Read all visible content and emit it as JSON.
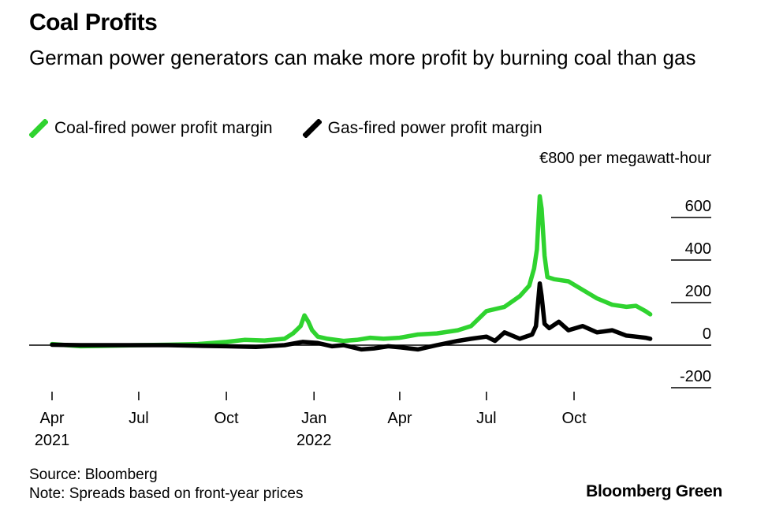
{
  "header": {
    "title": "Coal Profits",
    "subtitle": "German power generators can make more profit by burning coal than gas"
  },
  "legend": [
    {
      "label": "Coal-fired power profit margin",
      "color": "#2fd32f"
    },
    {
      "label": "Gas-fired power profit margin",
      "color": "#000000"
    }
  ],
  "footer": {
    "source": "Source: Bloomberg",
    "note": "Note: Spreads based on front-year prices",
    "brand": "Bloomberg Green"
  },
  "chart_data": {
    "type": "line",
    "x_type": "date",
    "ylim": [
      -200,
      800
    ],
    "xlim": [
      "2021-04-01",
      "2022-12-31"
    ],
    "y_unit_label": "€800 per megawatt-hour",
    "y_ticks": [
      {
        "value": 600,
        "label": "600"
      },
      {
        "value": 400,
        "label": "400"
      },
      {
        "value": 200,
        "label": "200"
      },
      {
        "value": 0,
        "label": "0"
      },
      {
        "value": -200,
        "label": "-200"
      }
    ],
    "x_ticks": [
      {
        "date": "2021-04-01",
        "label": "Apr",
        "year": "2021"
      },
      {
        "date": "2021-07-01",
        "label": "Jul",
        "year": ""
      },
      {
        "date": "2021-10-01",
        "label": "Oct",
        "year": ""
      },
      {
        "date": "2022-01-01",
        "label": "Jan",
        "year": "2022"
      },
      {
        "date": "2022-04-01",
        "label": "Apr",
        "year": ""
      },
      {
        "date": "2022-07-01",
        "label": "Jul",
        "year": ""
      },
      {
        "date": "2022-10-01",
        "label": "Oct",
        "year": ""
      }
    ],
    "grid": false,
    "legend_position": "top-left",
    "series": [
      {
        "name": "Coal-fired power profit margin",
        "color": "#2fd32f",
        "points": [
          [
            "2021-04-01",
            5
          ],
          [
            "2021-05-01",
            -5
          ],
          [
            "2021-06-01",
            -3
          ],
          [
            "2021-07-01",
            0
          ],
          [
            "2021-08-01",
            2
          ],
          [
            "2021-09-01",
            5
          ],
          [
            "2021-10-01",
            15
          ],
          [
            "2021-10-20",
            25
          ],
          [
            "2021-11-10",
            22
          ],
          [
            "2021-12-01",
            30
          ],
          [
            "2021-12-10",
            55
          ],
          [
            "2021-12-18",
            90
          ],
          [
            "2021-12-22",
            140
          ],
          [
            "2021-12-26",
            110
          ],
          [
            "2021-12-30",
            70
          ],
          [
            "2022-01-05",
            40
          ],
          [
            "2022-01-15",
            30
          ],
          [
            "2022-02-01",
            20
          ],
          [
            "2022-02-15",
            25
          ],
          [
            "2022-03-01",
            35
          ],
          [
            "2022-03-15",
            30
          ],
          [
            "2022-04-01",
            35
          ],
          [
            "2022-04-20",
            50
          ],
          [
            "2022-05-10",
            55
          ],
          [
            "2022-06-01",
            70
          ],
          [
            "2022-06-15",
            90
          ],
          [
            "2022-07-01",
            160
          ],
          [
            "2022-07-20",
            180
          ],
          [
            "2022-08-05",
            230
          ],
          [
            "2022-08-15",
            280
          ],
          [
            "2022-08-20",
            360
          ],
          [
            "2022-08-23",
            450
          ],
          [
            "2022-08-26",
            700
          ],
          [
            "2022-08-28",
            640
          ],
          [
            "2022-08-31",
            420
          ],
          [
            "2022-09-03",
            320
          ],
          [
            "2022-09-10",
            310
          ],
          [
            "2022-09-25",
            300
          ],
          [
            "2022-10-10",
            260
          ],
          [
            "2022-10-25",
            220
          ],
          [
            "2022-11-10",
            190
          ],
          [
            "2022-11-25",
            180
          ],
          [
            "2022-12-05",
            185
          ],
          [
            "2022-12-15",
            160
          ],
          [
            "2022-12-20",
            145
          ]
        ]
      },
      {
        "name": "Gas-fired power profit margin",
        "color": "#000000",
        "points": [
          [
            "2021-04-01",
            2
          ],
          [
            "2021-05-01",
            0
          ],
          [
            "2021-06-01",
            0
          ],
          [
            "2021-07-01",
            0
          ],
          [
            "2021-08-01",
            0
          ],
          [
            "2021-09-01",
            -3
          ],
          [
            "2021-10-01",
            -5
          ],
          [
            "2021-11-01",
            -8
          ],
          [
            "2021-12-01",
            0
          ],
          [
            "2021-12-20",
            15
          ],
          [
            "2022-01-05",
            10
          ],
          [
            "2022-01-20",
            -5
          ],
          [
            "2022-02-01",
            0
          ],
          [
            "2022-02-20",
            -20
          ],
          [
            "2022-03-05",
            -15
          ],
          [
            "2022-03-20",
            -5
          ],
          [
            "2022-04-01",
            -10
          ],
          [
            "2022-04-20",
            -20
          ],
          [
            "2022-05-10",
            0
          ],
          [
            "2022-06-01",
            20
          ],
          [
            "2022-06-15",
            30
          ],
          [
            "2022-07-01",
            40
          ],
          [
            "2022-07-10",
            20
          ],
          [
            "2022-07-20",
            60
          ],
          [
            "2022-08-05",
            30
          ],
          [
            "2022-08-18",
            50
          ],
          [
            "2022-08-22",
            90
          ],
          [
            "2022-08-26",
            290
          ],
          [
            "2022-08-28",
            230
          ],
          [
            "2022-08-31",
            100
          ],
          [
            "2022-09-05",
            80
          ],
          [
            "2022-09-15",
            110
          ],
          [
            "2022-09-25",
            70
          ],
          [
            "2022-10-10",
            90
          ],
          [
            "2022-10-25",
            60
          ],
          [
            "2022-11-10",
            70
          ],
          [
            "2022-11-25",
            45
          ],
          [
            "2022-12-05",
            40
          ],
          [
            "2022-12-15",
            35
          ],
          [
            "2022-12-20",
            30
          ]
        ]
      }
    ]
  }
}
